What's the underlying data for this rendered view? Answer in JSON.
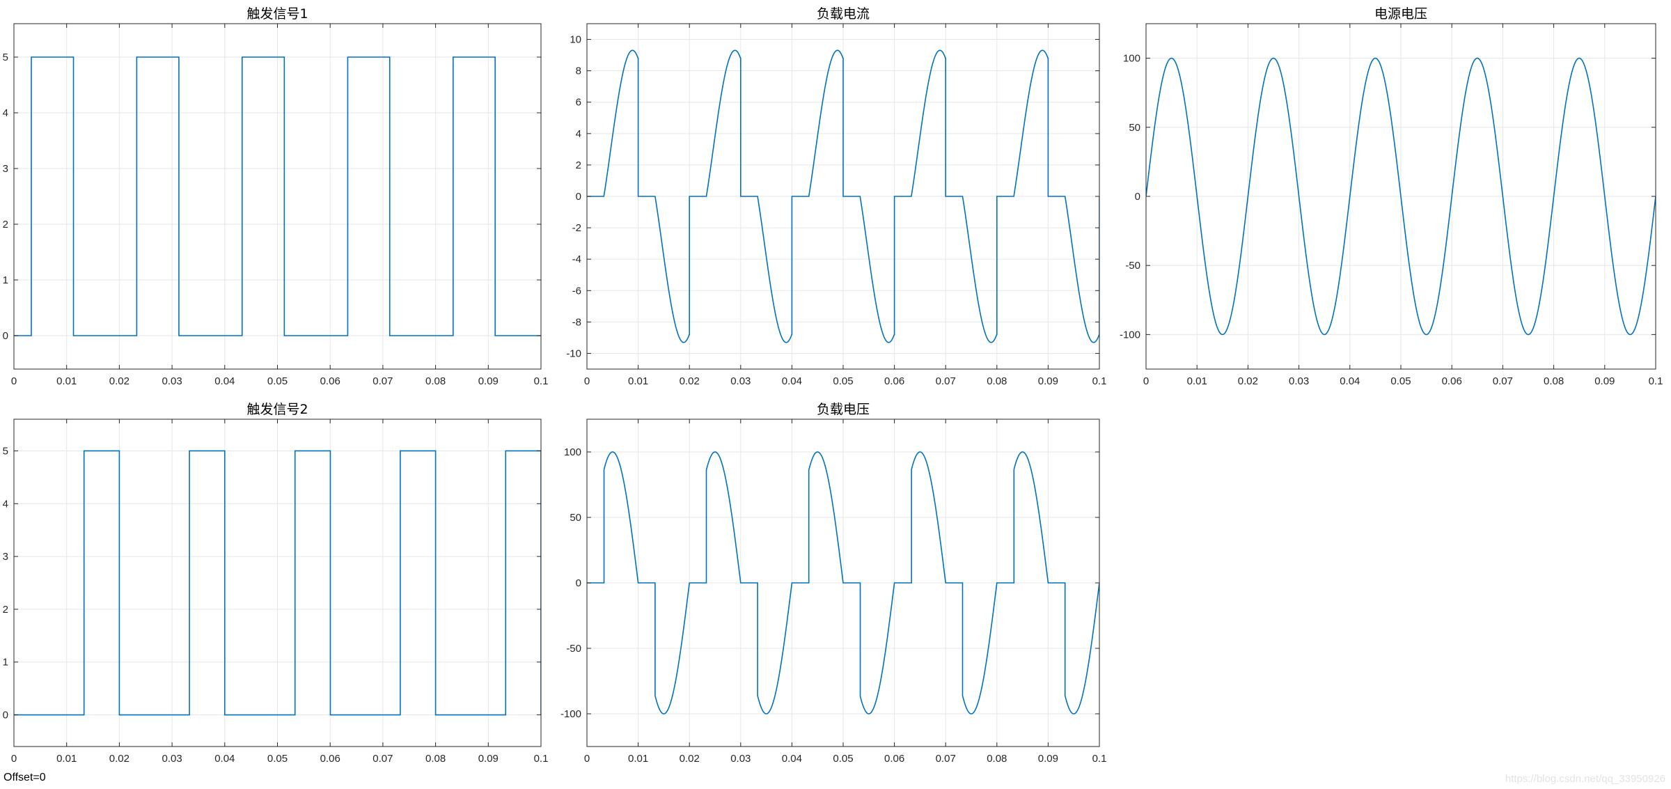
{
  "footer": {
    "offset_text": "Offset=0",
    "watermark": "https://blog.csdn.net/qq_33950926"
  },
  "style": {
    "line_color": "#0072BD",
    "grid_color": "#e6e6e6",
    "background": "#ffffff"
  },
  "chart_data": [
    {
      "id": "trigger1",
      "type": "line",
      "title": "触发信号1",
      "waveform": "pulse",
      "pulse": {
        "period": 0.02,
        "rise": 0.0033,
        "fall": 0.0113,
        "low": 0,
        "high": 5
      },
      "xlim": [
        0,
        0.1
      ],
      "ylim": [
        -0.6,
        5.6
      ],
      "xticks": [
        0,
        0.01,
        0.02,
        0.03,
        0.04,
        0.05,
        0.06,
        0.07,
        0.08,
        0.09,
        0.1
      ],
      "xtick_labels": [
        "0",
        "0.01",
        "0.02",
        "0.03",
        "0.04",
        "0.05",
        "0.06",
        "0.07",
        "0.08",
        "0.09",
        "0.1"
      ],
      "yticks": [
        0,
        1,
        2,
        3,
        4,
        5
      ],
      "ytick_labels": [
        "0",
        "1",
        "2",
        "3",
        "4",
        "5"
      ],
      "grid": true
    },
    {
      "id": "load_current",
      "type": "line",
      "title": "负载电流",
      "waveform": "ac_controller_current",
      "ac": {
        "frequency": 50,
        "amplitude": 9.1,
        "firing_angle_s": 0.0033,
        "conduction_s": 0.0077
      },
      "xlim": [
        0,
        0.1
      ],
      "ylim": [
        -11,
        11
      ],
      "xticks": [
        0,
        0.01,
        0.02,
        0.03,
        0.04,
        0.05,
        0.06,
        0.07,
        0.08,
        0.09,
        0.1
      ],
      "xtick_labels": [
        "0",
        "0.01",
        "0.02",
        "0.03",
        "0.04",
        "0.05",
        "0.06",
        "0.07",
        "0.08",
        "0.09",
        "0.1"
      ],
      "yticks": [
        -10,
        -8,
        -6,
        -4,
        -2,
        0,
        2,
        4,
        6,
        8,
        10
      ],
      "ytick_labels": [
        "-10",
        "-8",
        "-6",
        "-4",
        "-2",
        "0",
        "2",
        "4",
        "6",
        "8",
        "10"
      ],
      "grid": true
    },
    {
      "id": "source_voltage",
      "type": "line",
      "title": "电源电压",
      "waveform": "sine",
      "sine": {
        "frequency": 50,
        "amplitude": 100
      },
      "xlim": [
        0,
        0.1
      ],
      "ylim": [
        -125,
        125
      ],
      "xticks": [
        0,
        0.01,
        0.02,
        0.03,
        0.04,
        0.05,
        0.06,
        0.07,
        0.08,
        0.09,
        0.1
      ],
      "xtick_labels": [
        "0",
        "0.01",
        "0.02",
        "0.03",
        "0.04",
        "0.05",
        "0.06",
        "0.07",
        "0.08",
        "0.09",
        "0.1"
      ],
      "yticks": [
        -100,
        -50,
        0,
        50,
        100
      ],
      "ytick_labels": [
        "-100",
        "-50",
        "0",
        "50",
        "100"
      ],
      "grid": true
    },
    {
      "id": "trigger2",
      "type": "line",
      "title": "触发信号2",
      "waveform": "pulse",
      "pulse": {
        "period": 0.02,
        "rise": 0.0133,
        "fall": 0.0213,
        "low": 0,
        "high": 5
      },
      "xlim": [
        0,
        0.1
      ],
      "ylim": [
        -0.6,
        5.6
      ],
      "xticks": [
        0,
        0.01,
        0.02,
        0.03,
        0.04,
        0.05,
        0.06,
        0.07,
        0.08,
        0.09,
        0.1
      ],
      "xtick_labels": [
        "0",
        "0.01",
        "0.02",
        "0.03",
        "0.04",
        "0.05",
        "0.06",
        "0.07",
        "0.08",
        "0.09",
        "0.1"
      ],
      "yticks": [
        0,
        1,
        2,
        3,
        4,
        5
      ],
      "ytick_labels": [
        "0",
        "1",
        "2",
        "3",
        "4",
        "5"
      ],
      "grid": true
    },
    {
      "id": "load_voltage",
      "type": "line",
      "title": "负载电压",
      "waveform": "ac_controller_voltage",
      "ac": {
        "frequency": 50,
        "amplitude": 100,
        "firing_angle_s": 0.0033,
        "conduction_s": 0.0077
      },
      "xlim": [
        0,
        0.1
      ],
      "ylim": [
        -125,
        125
      ],
      "xticks": [
        0,
        0.01,
        0.02,
        0.03,
        0.04,
        0.05,
        0.06,
        0.07,
        0.08,
        0.09,
        0.1
      ],
      "xtick_labels": [
        "0",
        "0.01",
        "0.02",
        "0.03",
        "0.04",
        "0.05",
        "0.06",
        "0.07",
        "0.08",
        "0.09",
        "0.1"
      ],
      "yticks": [
        -100,
        -50,
        0,
        50,
        100
      ],
      "ytick_labels": [
        "-100",
        "-50",
        "0",
        "50",
        "100"
      ],
      "grid": true
    }
  ]
}
